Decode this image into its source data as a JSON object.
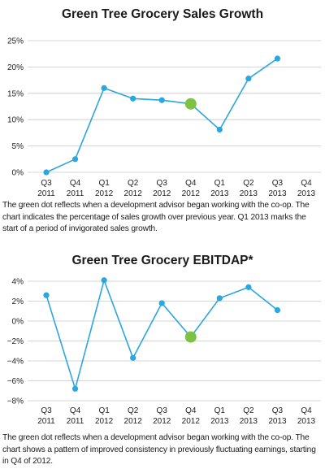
{
  "chart_data": [
    {
      "type": "line",
      "title": "Green Tree Grocery Sales Growth",
      "categories": [
        [
          "Q3",
          "2011"
        ],
        [
          "Q4",
          "2011"
        ],
        [
          "Q1",
          "2012"
        ],
        [
          "Q2",
          "2012"
        ],
        [
          "Q3",
          "2012"
        ],
        [
          "Q4",
          "2012"
        ],
        [
          "Q1",
          "2013"
        ],
        [
          "Q2",
          "2013"
        ],
        [
          "Q3",
          "2013"
        ],
        [
          "Q4",
          "2013"
        ]
      ],
      "values": [
        0,
        2.5,
        16,
        14,
        13.7,
        13,
        8.1,
        17.8,
        21.6,
        null
      ],
      "highlight_index": 5,
      "yticks": [
        0,
        5,
        10,
        15,
        20,
        25
      ],
      "ytick_labels": [
        "0%",
        "5%",
        "10%",
        "15%",
        "20%",
        "25%"
      ],
      "ylim": [
        0,
        25
      ],
      "grid": "horizontal",
      "line_color": "#2ba6de",
      "highlight_color": "#7dc243",
      "caption": "The green dot reflects when a development advisor began working with the co-op. The chart indicates the percentage of sales growth over previous year. Q1 2013 marks the start of a period of invigorated sales growth."
    },
    {
      "type": "line",
      "title": "Green Tree Grocery EBITDAP*",
      "categories": [
        [
          "Q3",
          "2011"
        ],
        [
          "Q4",
          "2011"
        ],
        [
          "Q1",
          "2012"
        ],
        [
          "Q2",
          "2012"
        ],
        [
          "Q3",
          "2012"
        ],
        [
          "Q4",
          "2012"
        ],
        [
          "Q1",
          "2013"
        ],
        [
          "Q2",
          "2013"
        ],
        [
          "Q3",
          "2013"
        ],
        [
          "Q4",
          "2013"
        ]
      ],
      "values": [
        2.6,
        -6.8,
        4.1,
        -3.7,
        1.8,
        -1.6,
        2.3,
        3.4,
        1.1,
        null
      ],
      "highlight_index": 5,
      "yticks": [
        -8,
        -6,
        -4,
        -2,
        0,
        2,
        4
      ],
      "ytick_labels": [
        "−8%",
        "−6%",
        "−4%",
        "−2%",
        "0%",
        "2%",
        "4%"
      ],
      "ylim": [
        -8,
        4
      ],
      "grid": "horizontal",
      "line_color": "#2ba6de",
      "highlight_color": "#7dc243",
      "caption": "The green dot reflects when a development advisor began working with the co-op. The chart shows a pattern of improved consistency in previously fluctuating earnings, starting in Q4 of 2012."
    }
  ]
}
